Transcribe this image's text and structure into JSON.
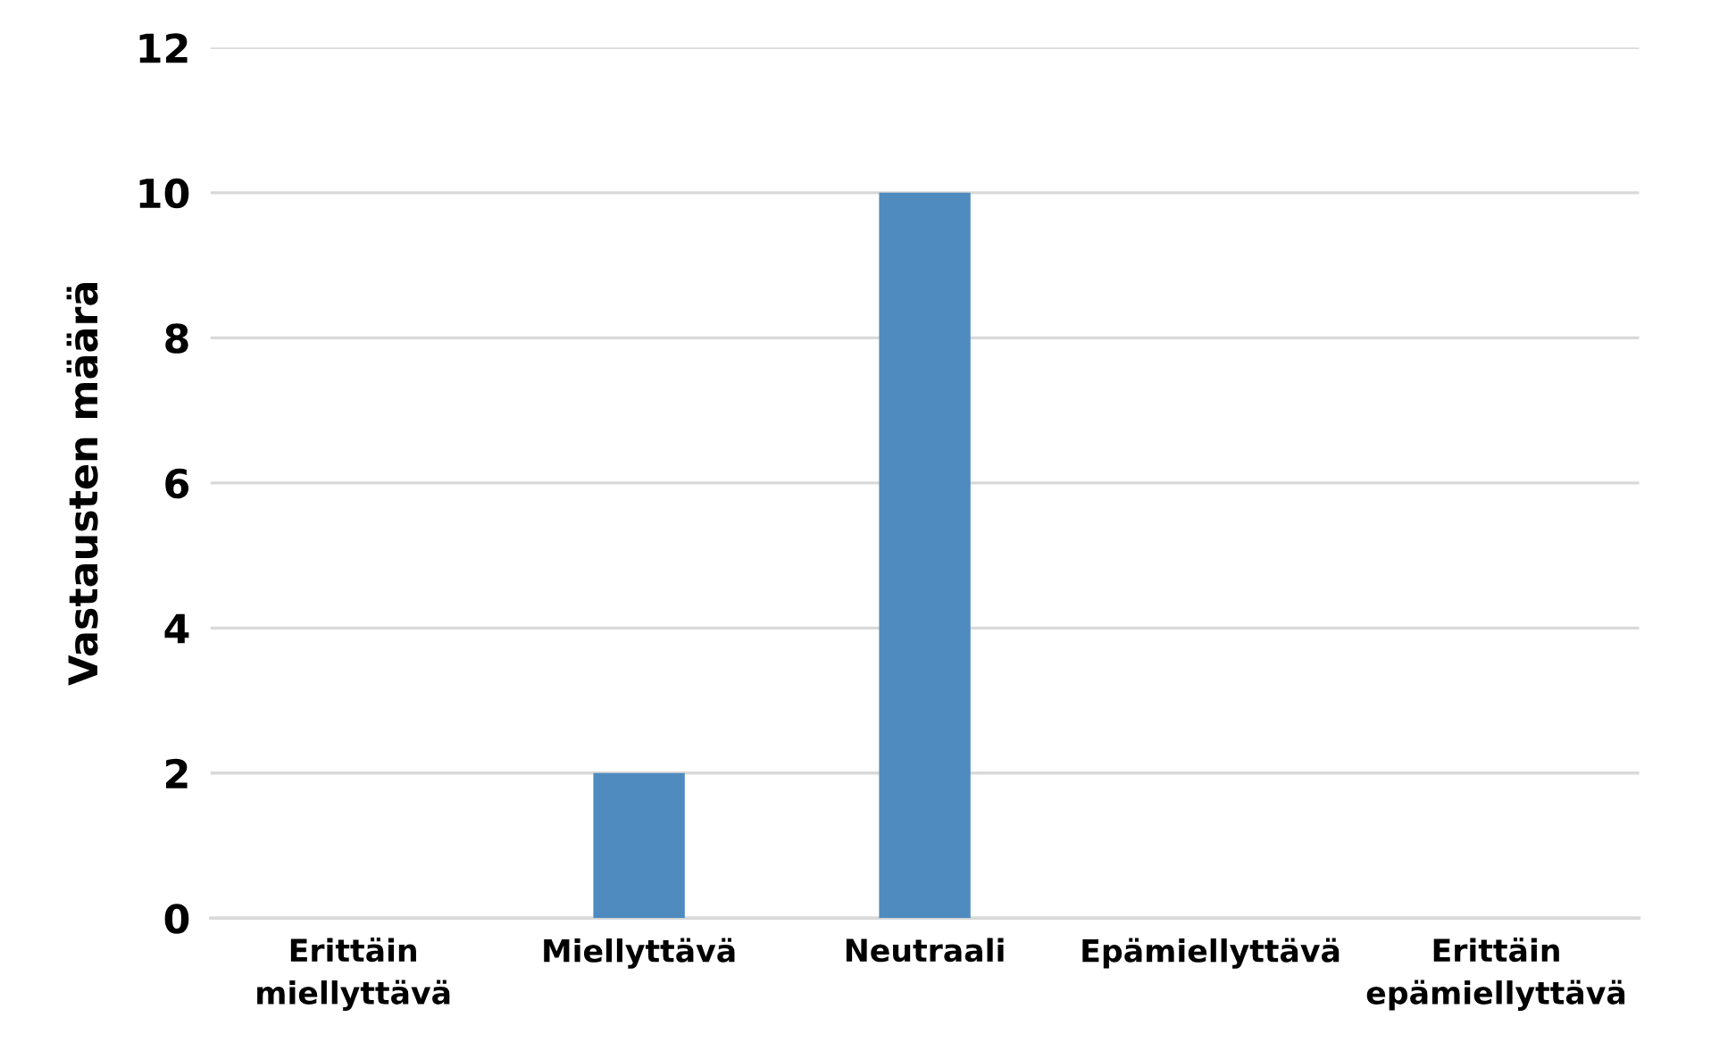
{
  "chart_data": {
    "type": "bar",
    "ylabel": "Vastausten määrä",
    "categories": [
      "Erittäin\nmiellyttävä",
      "Miellyttävä",
      "Neutraali",
      "Epämiellyttävä",
      "Erittäin\nepämiellyttävä"
    ],
    "values": [
      0,
      2,
      10,
      0,
      0
    ],
    "color": "#4f8bbf",
    "ylim": [
      0,
      12
    ],
    "yticks": [
      0,
      2,
      4,
      6,
      8,
      10,
      12
    ],
    "grid": "y",
    "legend": false
  }
}
